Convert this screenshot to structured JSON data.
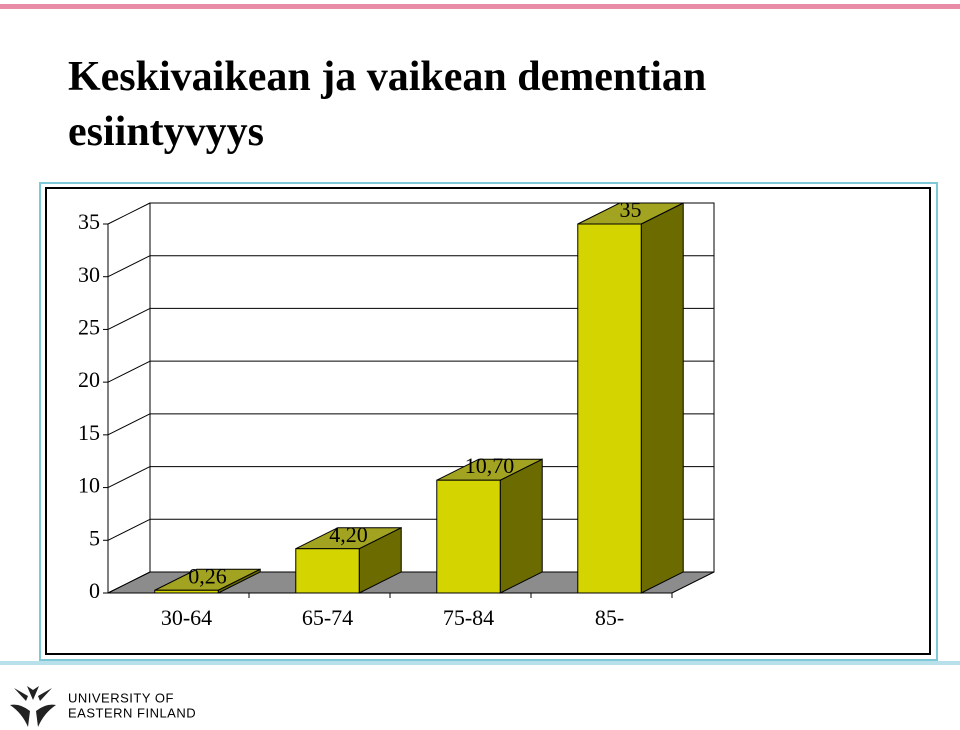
{
  "chart_data": {
    "type": "bar3d",
    "title": "Keskivaikean ja vaikean dementian esiintyvyys",
    "categories": [
      "30-64",
      "65-74",
      "75-84",
      "85-"
    ],
    "values": [
      0.26,
      4.2,
      10.7,
      35
    ],
    "value_labels": [
      "0,26",
      "4,20",
      "10,70",
      "35"
    ],
    "color": "#d4d400",
    "side_color": "#6b6b00",
    "top_color": "#a3a322",
    "ylim": [
      0,
      35
    ],
    "yticks": [
      0,
      5,
      10,
      15,
      20,
      25,
      30,
      35
    ],
    "grid": true
  },
  "footer": {
    "logo_lines": [
      "UNIVERSITY OF",
      "EASTERN FINLAND"
    ]
  }
}
